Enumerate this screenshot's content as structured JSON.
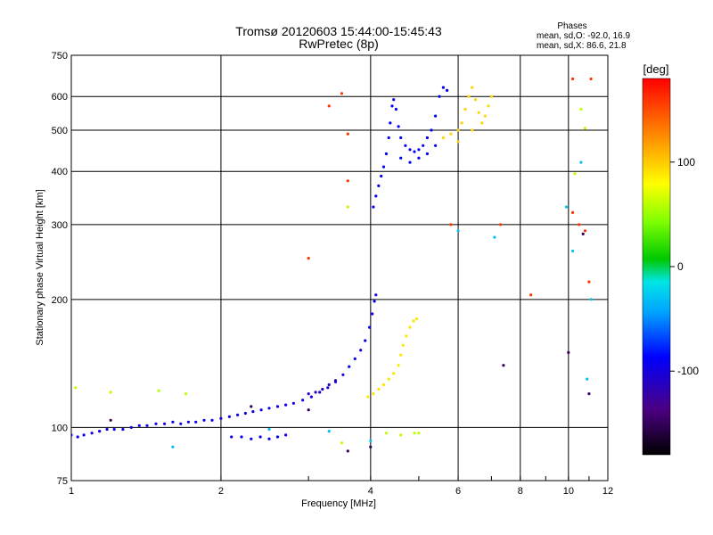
{
  "chart_data": {
    "type": "scatter",
    "title_line1": "Tromsø 20120603 15:44:00-15:45:43",
    "title_line2": "RwPretec (8p)",
    "stats": {
      "heading": "Phases",
      "line1": "mean, sd,O: -92.0, 16.9",
      "line2": "mean, sd,X:  86.6, 21.8"
    },
    "xlabel": "Frequency [MHz]",
    "ylabel": "Stationary phase Virtual Height [km]",
    "x_scale": "log",
    "y_scale": "log",
    "xlim": [
      1,
      12
    ],
    "ylim": [
      75,
      750
    ],
    "x_ticks": [
      1,
      2,
      4,
      6,
      8,
      10,
      12
    ],
    "y_ticks": [
      75,
      100,
      200,
      300,
      400,
      500,
      600,
      750
    ],
    "grid": true,
    "colorbar": {
      "label": "[deg]",
      "range": [
        -180,
        180
      ],
      "ticks": [
        100,
        0,
        -100
      ]
    },
    "series": [
      {
        "phase": -95,
        "points": [
          [
            1.0,
            96
          ],
          [
            1.03,
            95
          ],
          [
            1.06,
            96
          ],
          [
            1.1,
            97
          ],
          [
            1.14,
            98
          ],
          [
            1.18,
            99
          ],
          [
            1.22,
            99
          ],
          [
            1.27,
            99
          ],
          [
            1.32,
            100
          ],
          [
            1.37,
            101
          ],
          [
            1.42,
            101
          ],
          [
            1.48,
            102
          ],
          [
            1.54,
            102
          ],
          [
            1.6,
            103
          ],
          [
            1.66,
            102
          ],
          [
            1.72,
            103
          ],
          [
            1.78,
            103
          ],
          [
            1.85,
            104
          ],
          [
            1.92,
            104
          ],
          [
            2.0,
            105
          ],
          [
            2.08,
            106
          ],
          [
            2.16,
            107
          ],
          [
            2.24,
            108
          ],
          [
            2.32,
            109
          ],
          [
            2.41,
            110
          ],
          [
            2.5,
            111
          ],
          [
            2.6,
            112
          ],
          [
            2.7,
            113
          ],
          [
            2.8,
            114
          ],
          [
            2.92,
            116
          ],
          [
            3.04,
            118
          ],
          [
            3.16,
            121
          ],
          [
            3.28,
            124
          ],
          [
            3.4,
            128
          ],
          [
            3.52,
            133
          ],
          [
            3.62,
            139
          ],
          [
            3.72,
            145
          ],
          [
            3.82,
            152
          ],
          [
            3.9,
            160
          ],
          [
            3.98,
            172
          ],
          [
            4.03,
            185
          ],
          [
            4.07,
            198
          ],
          [
            4.1,
            205
          ]
        ]
      },
      {
        "phase": -115,
        "points": [
          [
            3.0,
            120
          ],
          [
            3.1,
            121
          ],
          [
            3.2,
            123
          ],
          [
            3.3,
            126
          ],
          [
            3.4,
            129
          ]
        ]
      },
      {
        "phase": -92,
        "points": [
          [
            2.1,
            95
          ],
          [
            2.2,
            95
          ],
          [
            2.3,
            94
          ],
          [
            2.4,
            95
          ],
          [
            2.5,
            94
          ],
          [
            2.6,
            95
          ],
          [
            2.7,
            96
          ]
        ]
      },
      {
        "phase": -90,
        "points": [
          [
            4.05,
            330
          ],
          [
            4.1,
            350
          ],
          [
            4.15,
            370
          ],
          [
            4.2,
            390
          ],
          [
            4.25,
            410
          ],
          [
            4.3,
            440
          ],
          [
            4.35,
            480
          ],
          [
            4.38,
            520
          ],
          [
            4.42,
            570
          ],
          [
            4.45,
            590
          ],
          [
            4.5,
            560
          ],
          [
            4.55,
            510
          ],
          [
            4.6,
            480
          ],
          [
            4.7,
            460
          ],
          [
            4.8,
            450
          ],
          [
            4.9,
            445
          ],
          [
            5.0,
            450
          ],
          [
            5.1,
            460
          ],
          [
            5.2,
            480
          ],
          [
            5.3,
            500
          ],
          [
            5.4,
            540
          ],
          [
            5.5,
            600
          ],
          [
            5.6,
            630
          ],
          [
            5.7,
            620
          ],
          [
            4.6,
            430
          ],
          [
            4.8,
            420
          ],
          [
            5.0,
            430
          ],
          [
            5.2,
            440
          ],
          [
            5.4,
            460
          ]
        ]
      },
      {
        "phase": 95,
        "points": [
          [
            5.6,
            480
          ],
          [
            5.8,
            490
          ],
          [
            6.0,
            500
          ],
          [
            6.1,
            520
          ],
          [
            6.2,
            560
          ],
          [
            6.3,
            600
          ],
          [
            6.4,
            630
          ],
          [
            6.5,
            590
          ],
          [
            6.6,
            550
          ],
          [
            6.7,
            520
          ],
          [
            6.8,
            540
          ],
          [
            6.9,
            570
          ],
          [
            7.0,
            600
          ],
          [
            6.0,
            470
          ],
          [
            6.4,
            500
          ]
        ]
      },
      {
        "phase": 90,
        "points": [
          [
            3.95,
            118
          ],
          [
            4.05,
            120
          ],
          [
            4.15,
            123
          ],
          [
            4.25,
            126
          ],
          [
            4.35,
            130
          ],
          [
            4.45,
            134
          ],
          [
            4.55,
            140
          ],
          [
            4.6,
            148
          ],
          [
            4.65,
            156
          ],
          [
            4.72,
            164
          ],
          [
            4.8,
            172
          ],
          [
            4.88,
            178
          ],
          [
            4.95,
            180
          ]
        ]
      },
      {
        "phase": 60,
        "points": [
          [
            1.02,
            124
          ],
          [
            1.2,
            121
          ],
          [
            1.5,
            122
          ],
          [
            1.7,
            120
          ],
          [
            3.5,
            92
          ],
          [
            3.6,
            330
          ],
          [
            4.3,
            97
          ],
          [
            4.6,
            96
          ],
          [
            4.9,
            97
          ],
          [
            5.0,
            97
          ],
          [
            10.3,
            395
          ],
          [
            10.6,
            560
          ],
          [
            10.8,
            505
          ]
        ]
      },
      {
        "phase": 160,
        "points": [
          [
            3.5,
            610
          ],
          [
            3.6,
            490
          ],
          [
            3.6,
            380
          ],
          [
            3.0,
            250
          ],
          [
            5.8,
            300
          ],
          [
            7.3,
            300
          ],
          [
            8.4,
            205
          ],
          [
            10.2,
            320
          ],
          [
            10.5,
            300
          ],
          [
            10.8,
            290
          ],
          [
            11.0,
            220
          ],
          [
            11.1,
            660
          ],
          [
            10.2,
            660
          ],
          [
            3.3,
            570
          ]
        ]
      },
      {
        "phase": -150,
        "points": [
          [
            1.2,
            104
          ],
          [
            2.3,
            112
          ],
          [
            3.0,
            110
          ],
          [
            3.6,
            88
          ],
          [
            4.0,
            90
          ],
          [
            10.0,
            150
          ],
          [
            10.7,
            285
          ],
          [
            11.0,
            120
          ],
          [
            7.4,
            140
          ]
        ]
      },
      {
        "phase": -30,
        "points": [
          [
            1.6,
            90
          ],
          [
            2.5,
            99
          ],
          [
            3.3,
            98
          ],
          [
            4.0,
            93
          ],
          [
            9.9,
            330
          ],
          [
            10.2,
            260
          ],
          [
            10.6,
            420
          ],
          [
            10.9,
            130
          ],
          [
            11.1,
            200
          ],
          [
            6.0,
            290
          ],
          [
            7.1,
            280
          ]
        ]
      }
    ]
  }
}
